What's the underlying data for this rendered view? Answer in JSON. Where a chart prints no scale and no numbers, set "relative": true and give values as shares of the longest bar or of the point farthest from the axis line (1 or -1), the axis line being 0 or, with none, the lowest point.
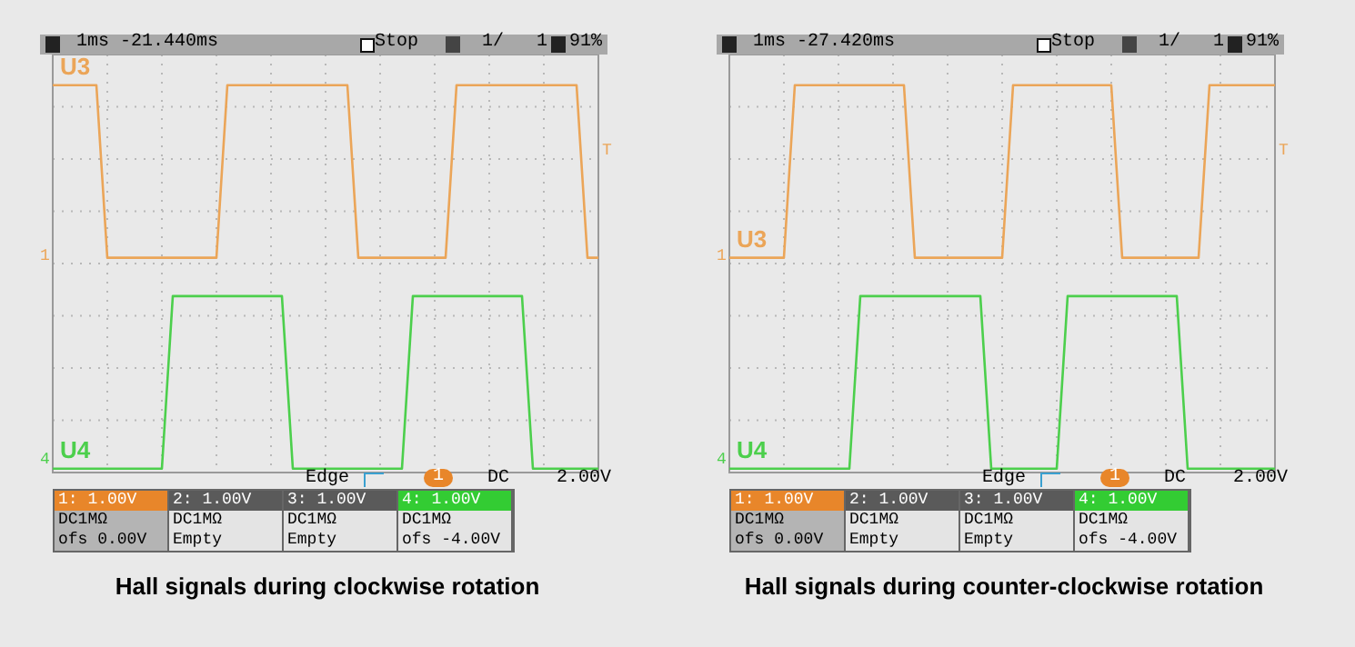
{
  "chart_data": [
    {
      "type": "line",
      "title": "Hall signals during clockwise rotation",
      "relative": true,
      "grid": true,
      "legend": false,
      "marker": "none",
      "line_style": "solid",
      "categories": [
        null,
        null,
        null,
        null,
        null,
        null,
        null,
        null,
        null,
        null,
        null,
        null,
        null,
        null,
        null,
        null,
        null,
        null,
        null,
        null,
        null,
        null,
        null,
        null,
        null,
        null,
        null,
        null,
        null,
        null,
        null,
        null,
        null,
        null,
        null,
        null,
        null,
        null,
        null,
        null,
        null,
        null,
        null,
        null,
        null,
        null,
        null,
        null,
        null,
        null,
        null
      ],
      "series": [
        {
          "name": "U3",
          "color": "#eba558",
          "values": [
            1,
            1,
            1,
            1,
            1,
            0.55,
            0.55,
            0.55,
            0.55,
            0.55,
            0.55,
            0.55,
            0.55,
            0.55,
            0.55,
            0.55,
            1,
            1,
            1,
            1,
            1,
            1,
            1,
            1,
            1,
            1,
            1,
            1,
            0.55,
            0.55,
            0.55,
            0.55,
            0.55,
            0.55,
            0.55,
            0.55,
            0.55,
            1,
            1,
            1,
            1,
            1,
            1,
            1,
            1,
            1,
            1,
            1,
            1,
            0.55,
            0.55
          ]
        },
        {
          "name": "U4",
          "color": "#4ccf4c",
          "values": [
            0,
            0,
            0,
            0,
            0,
            0,
            0,
            0,
            0,
            0,
            0,
            0.45,
            0.45,
            0.45,
            0.45,
            0.45,
            0.45,
            0.45,
            0.45,
            0.45,
            0.45,
            0.45,
            0,
            0,
            0,
            0,
            0,
            0,
            0,
            0,
            0,
            0,
            0,
            0.45,
            0.45,
            0.45,
            0.45,
            0.45,
            0.45,
            0.45,
            0.45,
            0.45,
            0.45,
            0.45,
            0,
            0,
            0,
            0,
            0,
            0,
            0
          ]
        }
      ],
      "annotations": [
        "1ms -21.440ms",
        "Stop",
        "1/   1",
        "91%",
        "Edge",
        "1",
        "DC",
        "2.00V",
        "1: 1.00V",
        "DC1MΩ",
        "ofs 0.00V",
        "2: 1.00V",
        "DC1MΩ",
        "Empty",
        "3: 1.00V",
        "DC1MΩ",
        "Empty",
        "4: 1.00V",
        "DC1MΩ",
        "ofs -4.00V",
        "1",
        "4",
        "T"
      ]
    },
    {
      "type": "line",
      "title": "Hall signals during counter-clockwise rotation",
      "relative": true,
      "grid": true,
      "legend": false,
      "marker": "none",
      "line_style": "solid",
      "categories": [
        null,
        null,
        null,
        null,
        null,
        null,
        null,
        null,
        null,
        null,
        null,
        null,
        null,
        null,
        null,
        null,
        null,
        null,
        null,
        null,
        null,
        null,
        null,
        null,
        null,
        null,
        null,
        null,
        null,
        null,
        null,
        null,
        null,
        null,
        null,
        null,
        null,
        null,
        null,
        null,
        null,
        null,
        null,
        null,
        null,
        null,
        null,
        null,
        null,
        null,
        null
      ],
      "series": [
        {
          "name": "U3",
          "color": "#eba558",
          "values": [
            0.55,
            0.55,
            0.55,
            0.55,
            0.55,
            0.55,
            1,
            1,
            1,
            1,
            1,
            1,
            1,
            1,
            1,
            1,
            1,
            0.55,
            0.55,
            0.55,
            0.55,
            0.55,
            0.55,
            0.55,
            0.55,
            0.55,
            1,
            1,
            1,
            1,
            1,
            1,
            1,
            1,
            1,
            1,
            0.55,
            0.55,
            0.55,
            0.55,
            0.55,
            0.55,
            0.55,
            0.55,
            1,
            1,
            1,
            1,
            1,
            1,
            1
          ]
        },
        {
          "name": "U4",
          "color": "#4ccf4c",
          "values": [
            0,
            0,
            0,
            0,
            0,
            0,
            0,
            0,
            0,
            0,
            0,
            0,
            0.45,
            0.45,
            0.45,
            0.45,
            0.45,
            0.45,
            0.45,
            0.45,
            0.45,
            0.45,
            0.45,
            0.45,
            0,
            0,
            0,
            0,
            0,
            0,
            0,
            0.45,
            0.45,
            0.45,
            0.45,
            0.45,
            0.45,
            0.45,
            0.45,
            0.45,
            0.45,
            0.45,
            0,
            0,
            0,
            0,
            0,
            0,
            0,
            0,
            0
          ]
        }
      ],
      "annotations": [
        "1ms -27.420ms",
        "Stop",
        "1/   1",
        "91%",
        "Edge",
        "1",
        "DC",
        "2.00V",
        "1: 1.00V",
        "DC1MΩ",
        "ofs 0.00V",
        "2: 1.00V",
        "DC1MΩ",
        "Empty",
        "3: 1.00V",
        "DC1MΩ",
        "Empty",
        "4: 1.00V",
        "DC1MΩ",
        "ofs -4.00V",
        "1",
        "4",
        "T"
      ]
    }
  ]
}
